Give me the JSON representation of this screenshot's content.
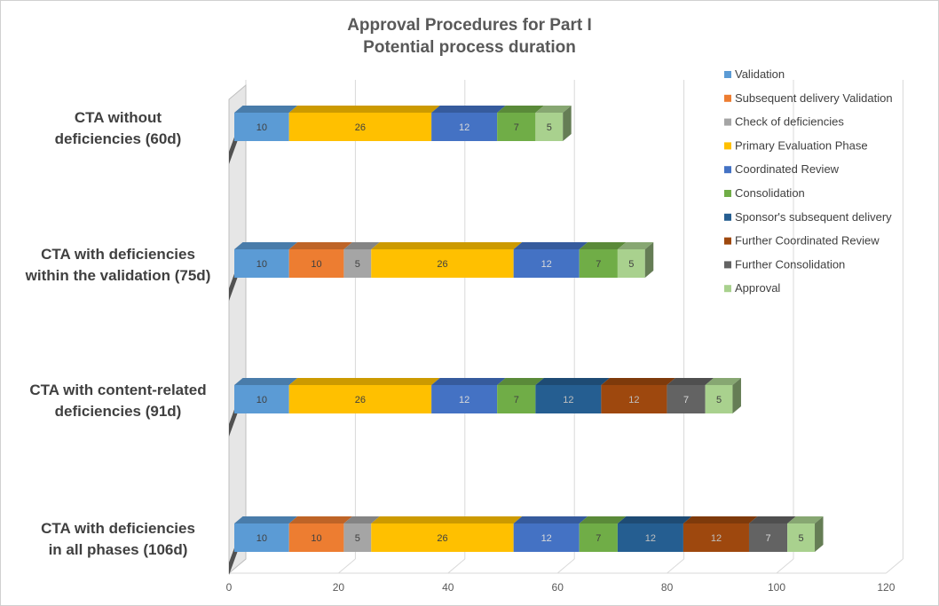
{
  "chart_data": {
    "type": "bar",
    "orientation": "horizontal",
    "stacked": true,
    "style": "3d",
    "title": "Approval Procedures for Part I",
    "subtitle": "Potential process duration",
    "xlim": [
      0,
      120
    ],
    "xticks": [
      0,
      20,
      40,
      60,
      80,
      100,
      120
    ],
    "grid": true,
    "legend_position": "right",
    "categories": [
      {
        "label": "CTA without deficiencies (60d)",
        "lines": [
          "CTA without",
          "deficiencies (60d)"
        ]
      },
      {
        "label": "CTA with deficiencies within the validation (75d)",
        "lines": [
          "CTA with deficiencies",
          "within the validation (75d)"
        ]
      },
      {
        "label": "CTA with content-related deficiencies (91d)",
        "lines": [
          "CTA with content-related",
          "deficiencies (91d)"
        ]
      },
      {
        "label": "CTA with deficiencies in all phases (106d)",
        "lines": [
          "CTA with deficiencies",
          "in all phases (106d)"
        ]
      }
    ],
    "series": [
      {
        "name": "Validation",
        "color": "#5b9bd5",
        "text_color": "#404040",
        "values": [
          10,
          10,
          10,
          10
        ]
      },
      {
        "name": "Subsequent delivery Validation",
        "color": "#ed7d31",
        "text_color": "#404040",
        "values": [
          0,
          10,
          0,
          10
        ]
      },
      {
        "name": "Check of deficiencies",
        "color": "#a5a5a5",
        "text_color": "#404040",
        "values": [
          0,
          5,
          0,
          5
        ]
      },
      {
        "name": "Primary Evaluation Phase",
        "color": "#ffc000",
        "text_color": "#404040",
        "values": [
          26,
          26,
          26,
          26
        ]
      },
      {
        "name": "Coordinated Review",
        "color": "#4472c4",
        "text_color": "#d9d9d9",
        "values": [
          12,
          12,
          12,
          12
        ]
      },
      {
        "name": "Consolidation",
        "color": "#70ad47",
        "text_color": "#404040",
        "values": [
          7,
          7,
          7,
          7
        ]
      },
      {
        "name": "Sponsor's subsequent delivery",
        "color": "#255e91",
        "text_color": "#bfbfbf",
        "values": [
          0,
          0,
          12,
          12
        ]
      },
      {
        "name": "Further Coordinated Review",
        "color": "#9e480e",
        "text_color": "#bfbfbf",
        "values": [
          0,
          0,
          12,
          12
        ]
      },
      {
        "name": "Further Consolidation",
        "color": "#636363",
        "text_color": "#d9d9d9",
        "values": [
          0,
          0,
          7,
          7
        ]
      },
      {
        "name": "Approval",
        "color": "#a9d18e",
        "text_color": "#404040",
        "values": [
          5,
          5,
          5,
          5
        ]
      }
    ]
  }
}
